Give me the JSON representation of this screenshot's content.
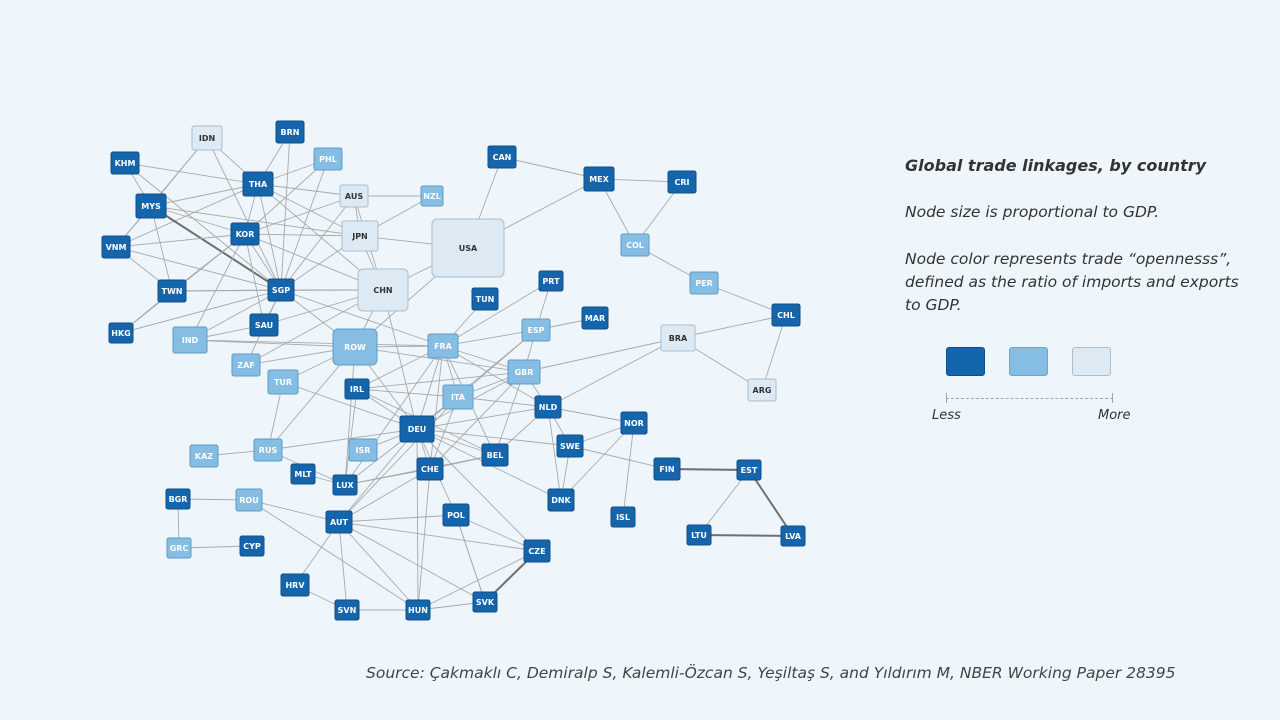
{
  "panel": {
    "title": "Global trade linkages, by country",
    "size_note": "Node size is proportional to GDP.",
    "color_note": "Node color represents trade “opennesss”, defined as the ratio of imports and exports to GDP."
  },
  "legend": {
    "less_label": "Less",
    "more_label": "More",
    "colors": {
      "less": "#1565ad",
      "mid": "#86bde2",
      "more": "#dde9f3"
    }
  },
  "source": "Source: Çakmaklı C, Demiralp S, Kalemli-Özcan S, Yeşiltaş S, and Yıldırım M, NBER Working Paper 28395",
  "network": {
    "nodes": [
      {
        "id": "IDN",
        "openness": "more"
      },
      {
        "id": "BRN",
        "openness": "less"
      },
      {
        "id": "KHM",
        "openness": "less"
      },
      {
        "id": "PHL",
        "openness": "mid"
      },
      {
        "id": "THA",
        "openness": "less"
      },
      {
        "id": "MYS",
        "openness": "less"
      },
      {
        "id": "AUS",
        "openness": "more"
      },
      {
        "id": "NZL",
        "openness": "mid"
      },
      {
        "id": "CAN",
        "openness": "less"
      },
      {
        "id": "MEX",
        "openness": "less"
      },
      {
        "id": "CRI",
        "openness": "less"
      },
      {
        "id": "VNM",
        "openness": "less"
      },
      {
        "id": "KOR",
        "openness": "less"
      },
      {
        "id": "JPN",
        "openness": "more"
      },
      {
        "id": "USA",
        "openness": "more"
      },
      {
        "id": "COL",
        "openness": "mid"
      },
      {
        "id": "TWN",
        "openness": "less"
      },
      {
        "id": "SGP",
        "openness": "less"
      },
      {
        "id": "CHN",
        "openness": "more"
      },
      {
        "id": "PER",
        "openness": "mid"
      },
      {
        "id": "PRT",
        "openness": "less"
      },
      {
        "id": "TUN",
        "openness": "less"
      },
      {
        "id": "HKG",
        "openness": "less"
      },
      {
        "id": "SAU",
        "openness": "less"
      },
      {
        "id": "ESP",
        "openness": "mid"
      },
      {
        "id": "MAR",
        "openness": "less"
      },
      {
        "id": "CHL",
        "openness": "less"
      },
      {
        "id": "IND",
        "openness": "mid"
      },
      {
        "id": "ROW",
        "openness": "mid"
      },
      {
        "id": "FRA",
        "openness": "mid"
      },
      {
        "id": "BRA",
        "openness": "more"
      },
      {
        "id": "ZAF",
        "openness": "mid"
      },
      {
        "id": "TUR",
        "openness": "mid"
      },
      {
        "id": "GBR",
        "openness": "mid"
      },
      {
        "id": "IRL",
        "openness": "less"
      },
      {
        "id": "ITA",
        "openness": "mid"
      },
      {
        "id": "NLD",
        "openness": "less"
      },
      {
        "id": "ARG",
        "openness": "more"
      },
      {
        "id": "NOR",
        "openness": "less"
      },
      {
        "id": "DEU",
        "openness": "less"
      },
      {
        "id": "KAZ",
        "openness": "mid"
      },
      {
        "id": "RUS",
        "openness": "mid"
      },
      {
        "id": "ISR",
        "openness": "mid"
      },
      {
        "id": "SWE",
        "openness": "less"
      },
      {
        "id": "BEL",
        "openness": "less"
      },
      {
        "id": "MLT",
        "openness": "less"
      },
      {
        "id": "CHE",
        "openness": "less"
      },
      {
        "id": "FIN",
        "openness": "less"
      },
      {
        "id": "EST",
        "openness": "less"
      },
      {
        "id": "LUX",
        "openness": "less"
      },
      {
        "id": "BGR",
        "openness": "less"
      },
      {
        "id": "ROU",
        "openness": "mid"
      },
      {
        "id": "DNK",
        "openness": "less"
      },
      {
        "id": "AUT",
        "openness": "less"
      },
      {
        "id": "POL",
        "openness": "less"
      },
      {
        "id": "ISL",
        "openness": "less"
      },
      {
        "id": "LTU",
        "openness": "less"
      },
      {
        "id": "LVA",
        "openness": "less"
      },
      {
        "id": "GRC",
        "openness": "mid"
      },
      {
        "id": "CYP",
        "openness": "less"
      },
      {
        "id": "CZE",
        "openness": "less"
      },
      {
        "id": "HRV",
        "openness": "less"
      },
      {
        "id": "SVN",
        "openness": "less"
      },
      {
        "id": "HUN",
        "openness": "less"
      },
      {
        "id": "SVK",
        "openness": "less"
      }
    ],
    "edges": [
      [
        "IDN",
        "THA"
      ],
      [
        "IDN",
        "MYS"
      ],
      [
        "IDN",
        "SGP"
      ],
      [
        "IDN",
        "VNM"
      ],
      [
        "BRN",
        "THA"
      ],
      [
        "BRN",
        "SGP"
      ],
      [
        "KHM",
        "MYS"
      ],
      [
        "KHM",
        "THA"
      ],
      [
        "KHM",
        "SGP"
      ],
      [
        "PHL",
        "THA"
      ],
      [
        "PHL",
        "SGP"
      ],
      [
        "PHL",
        "KOR"
      ],
      [
        "THA",
        "MYS"
      ],
      [
        "THA",
        "AUS"
      ],
      [
        "THA",
        "JPN"
      ],
      [
        "THA",
        "SGP"
      ],
      [
        "THA",
        "KOR"
      ],
      [
        "THA",
        "CHN"
      ],
      [
        "THA",
        "VNM"
      ],
      [
        "MYS",
        "SGP"
      ],
      [
        "MYS",
        "KOR"
      ],
      [
        "MYS",
        "TWN"
      ],
      [
        "MYS",
        "VNM"
      ],
      [
        "MYS",
        "JPN"
      ],
      [
        "AUS",
        "NZL"
      ],
      [
        "AUS",
        "JPN"
      ],
      [
        "AUS",
        "CHN"
      ],
      [
        "AUS",
        "SGP"
      ],
      [
        "AUS",
        "KOR"
      ],
      [
        "CAN",
        "USA"
      ],
      [
        "CAN",
        "MEX"
      ],
      [
        "MEX",
        "USA"
      ],
      [
        "MEX",
        "CRI"
      ],
      [
        "MEX",
        "COL"
      ],
      [
        "COL",
        "CRI"
      ],
      [
        "COL",
        "PER"
      ],
      [
        "PER",
        "CHL"
      ],
      [
        "CHL",
        "BRA"
      ],
      [
        "CHL",
        "ARG"
      ],
      [
        "BRA",
        "ARG"
      ],
      [
        "BRA",
        "NLD"
      ],
      [
        "BRA",
        "GBR"
      ],
      [
        "VNM",
        "KOR"
      ],
      [
        "VNM",
        "TWN"
      ],
      [
        "VNM",
        "SGP"
      ],
      [
        "KOR",
        "SGP"
      ],
      [
        "KOR",
        "TWN"
      ],
      [
        "KOR",
        "JPN"
      ],
      [
        "KOR",
        "CHN"
      ],
      [
        "KOR",
        "HKG"
      ],
      [
        "KOR",
        "SAU"
      ],
      [
        "KOR",
        "IND"
      ],
      [
        "JPN",
        "USA"
      ],
      [
        "JPN",
        "CHN"
      ],
      [
        "JPN",
        "SGP"
      ],
      [
        "JPN",
        "NZL"
      ],
      [
        "USA",
        "CHN"
      ],
      [
        "USA",
        "ROW"
      ],
      [
        "TWN",
        "SGP"
      ],
      [
        "TWN",
        "HKG"
      ],
      [
        "TWN",
        "CHN"
      ],
      [
        "SGP",
        "CHN"
      ],
      [
        "SGP",
        "IND"
      ],
      [
        "SGP",
        "SAU"
      ],
      [
        "SGP",
        "ROW"
      ],
      [
        "SGP",
        "ZAF"
      ],
      [
        "SGP",
        "FRA"
      ],
      [
        "CHN",
        "ROW"
      ],
      [
        "CHN",
        "DEU"
      ],
      [
        "CHN",
        "SAU"
      ],
      [
        "CHN",
        "ZAF"
      ],
      [
        "HKG",
        "SGP"
      ],
      [
        "IND",
        "ROW"
      ],
      [
        "IND",
        "SAU"
      ],
      [
        "IND",
        "FRA"
      ],
      [
        "ROW",
        "DEU"
      ],
      [
        "ROW",
        "FRA"
      ],
      [
        "ROW",
        "RUS"
      ],
      [
        "ROW",
        "GBR"
      ],
      [
        "ROW",
        "TUR"
      ],
      [
        "ROW",
        "LUX"
      ],
      [
        "ROW",
        "ZAF"
      ],
      [
        "FRA",
        "DEU"
      ],
      [
        "FRA",
        "ITA"
      ],
      [
        "FRA",
        "ESP"
      ],
      [
        "FRA",
        "GBR"
      ],
      [
        "FRA",
        "BEL"
      ],
      [
        "FRA",
        "NLD"
      ],
      [
        "FRA",
        "CHE"
      ],
      [
        "FRA",
        "IRL"
      ],
      [
        "FRA",
        "TUN"
      ],
      [
        "FRA",
        "LUX"
      ],
      [
        "ESP",
        "PRT"
      ],
      [
        "ESP",
        "MAR"
      ],
      [
        "ESP",
        "ITA"
      ],
      [
        "ESP",
        "DEU"
      ],
      [
        "ESP",
        "GBR"
      ],
      [
        "PRT",
        "FRA"
      ],
      [
        "GBR",
        "DEU"
      ],
      [
        "GBR",
        "IRL"
      ],
      [
        "GBR",
        "NLD"
      ],
      [
        "GBR",
        "BEL"
      ],
      [
        "GBR",
        "ITA"
      ],
      [
        "GBR",
        "CHE"
      ],
      [
        "IRL",
        "DEU"
      ],
      [
        "IRL",
        "BEL"
      ],
      [
        "IRL",
        "LUX"
      ],
      [
        "IRL",
        "ITA"
      ],
      [
        "ITA",
        "DEU"
      ],
      [
        "ITA",
        "CHE"
      ],
      [
        "ITA",
        "AUT"
      ],
      [
        "ITA",
        "NLD"
      ],
      [
        "DEU",
        "NLD"
      ],
      [
        "DEU",
        "BEL"
      ],
      [
        "DEU",
        "CHE"
      ],
      [
        "DEU",
        "AUT"
      ],
      [
        "DEU",
        "POL"
      ],
      [
        "DEU",
        "CZE"
      ],
      [
        "DEU",
        "SWE"
      ],
      [
        "DEU",
        "RUS"
      ],
      [
        "DEU",
        "LUX"
      ],
      [
        "DEU",
        "HUN"
      ],
      [
        "DEU",
        "DNK"
      ],
      [
        "DEU",
        "TUR"
      ],
      [
        "NLD",
        "BEL"
      ],
      [
        "NLD",
        "NOR"
      ],
      [
        "NLD",
        "SWE"
      ],
      [
        "NLD",
        "DNK"
      ],
      [
        "BEL",
        "LUX"
      ],
      [
        "BEL",
        "CHE"
      ],
      [
        "SWE",
        "NOR"
      ],
      [
        "SWE",
        "FIN"
      ],
      [
        "SWE",
        "DNK"
      ],
      [
        "NOR",
        "DNK"
      ],
      [
        "NOR",
        "ISL"
      ],
      [
        "FIN",
        "EST"
      ],
      [
        "EST",
        "LVA"
      ],
      [
        "EST",
        "LTU"
      ],
      [
        "LTU",
        "LVA"
      ],
      [
        "RUS",
        "KAZ"
      ],
      [
        "RUS",
        "LUX"
      ],
      [
        "RUS",
        "TUR"
      ],
      [
        "CHE",
        "LUX"
      ],
      [
        "CHE",
        "AUT"
      ],
      [
        "MLT",
        "LUX"
      ],
      [
        "ISR",
        "DEU"
      ],
      [
        "BGR",
        "ROU"
      ],
      [
        "BGR",
        "GRC"
      ],
      [
        "GRC",
        "CYP"
      ],
      [
        "ROU",
        "AUT"
      ],
      [
        "ROU",
        "HUN"
      ],
      [
        "AUT",
        "CZE"
      ],
      [
        "AUT",
        "HUN"
      ],
      [
        "AUT",
        "SVN"
      ],
      [
        "AUT",
        "SVK"
      ],
      [
        "AUT",
        "POL"
      ],
      [
        "POL",
        "CZE"
      ],
      [
        "POL",
        "SVK"
      ],
      [
        "CZE",
        "SVK"
      ],
      [
        "CZE",
        "HUN"
      ],
      [
        "HUN",
        "SVK"
      ],
      [
        "HUN",
        "SVN"
      ],
      [
        "HRV",
        "SVN"
      ],
      [
        "HRV",
        "AUT"
      ],
      [
        "SVK",
        "POL"
      ],
      [
        "CHE",
        "HUN"
      ]
    ],
    "heavy_edges": [
      [
        "MYS",
        "SGP"
      ],
      [
        "CZE",
        "SVK"
      ],
      [
        "EST",
        "LVA"
      ],
      [
        "LTU",
        "LVA"
      ],
      [
        "FIN",
        "EST"
      ]
    ]
  }
}
